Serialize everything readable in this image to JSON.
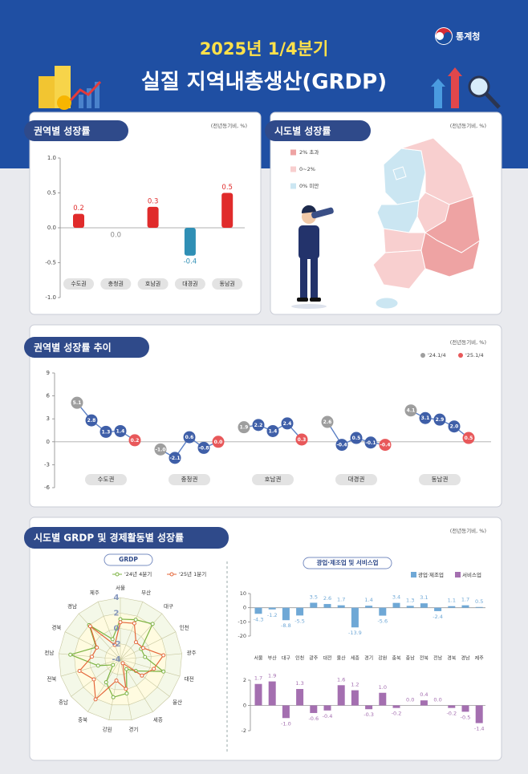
{
  "header": {
    "title_line1": "2025년 1/4분기",
    "title_line2": "실질 지역내총생산(GRDP)",
    "logo": "통계청"
  },
  "panel4": {
    "title": "시도별 GRDP 및 경제활동별 성장률",
    "unit": "(전년동기비, %)"
  },
  "chart_data": [
    {
      "type": "bar",
      "title": "권역별 성장률",
      "unit": "(전년동기비, %)",
      "categories": [
        "수도권",
        "충청권",
        "호남권",
        "대경권",
        "동남권"
      ],
      "values": [
        0.2,
        0.0,
        0.3,
        -0.4,
        0.5
      ],
      "value_labels": [
        "0.2",
        "0.0",
        "0.3",
        "-0.4",
        "0.5"
      ],
      "colors": [
        "#e02b2b",
        "#8a8a8a",
        "#e02b2b",
        "#2f8fb5",
        "#e02b2b"
      ],
      "ylim": [
        -1,
        1
      ],
      "yticks": [
        {
          "value": -1,
          "label": "-1.0"
        },
        {
          "value": -0.5,
          "label": "-0.5"
        },
        {
          "value": 0,
          "label": "0.0"
        },
        {
          "value": 0.5,
          "label": "0.5"
        },
        {
          "value": 1,
          "label": "1.0"
        }
      ]
    },
    {
      "type": "map",
      "title": "시도별 성장률",
      "unit": "(전년동기비, %)",
      "legend": [
        {
          "label": "2% 초과",
          "color": "#eea3a3"
        },
        {
          "label": "0~2%",
          "color": "#f8cfcf"
        },
        {
          "label": "0% 미만",
          "color": "#cbe6f2"
        }
      ]
    },
    {
      "type": "line",
      "title": "권역별 성장률 추이",
      "unit": "(전년동기비, %)",
      "legend": [
        {
          "label": "'24.1/4",
          "color": "#9e9e9e"
        },
        {
          "label": "'25.1/4",
          "color": "#e8585a"
        }
      ],
      "point_color": "#3f5fa8",
      "line_color": "#5b7fc4",
      "series": [
        {
          "name": "수도권",
          "values": [
            5.1,
            2.8,
            1.3,
            1.4,
            0.2
          ],
          "value_labels": [
            "5.1",
            "2.8",
            "1.3",
            "1.4",
            "0.2"
          ]
        },
        {
          "name": "충청권",
          "values": [
            -1.0,
            -2.1,
            0.6,
            -0.8,
            0.0
          ],
          "value_labels": [
            "-1.0",
            "-2.1",
            "0.6",
            "-0.8",
            "0.0"
          ]
        },
        {
          "name": "호남권",
          "values": [
            1.9,
            2.2,
            1.4,
            2.4,
            0.3
          ],
          "value_labels": [
            "1.9",
            "2.2",
            "1.4",
            "2.4",
            "0.3"
          ]
        },
        {
          "name": "대경권",
          "values": [
            2.6,
            -0.4,
            0.5,
            -0.1,
            -0.4
          ],
          "value_labels": [
            "2.6",
            "-0.4",
            "0.5",
            "-0.1",
            "-0.4"
          ]
        },
        {
          "name": "동남권",
          "values": [
            4.1,
            3.1,
            2.9,
            2.0,
            0.5
          ],
          "value_labels": [
            "4.1",
            "3.1",
            "2.9",
            "2.0",
            "0.5"
          ]
        }
      ],
      "ylim": [
        -6,
        9
      ],
      "yticks": [
        -6,
        -3,
        0,
        3,
        6,
        9
      ]
    },
    {
      "type": "radar",
      "title": "GRDP",
      "categories": [
        "서울",
        "부산",
        "대구",
        "인천",
        "광주",
        "대전",
        "울산",
        "세종",
        "경기",
        "강원",
        "충북",
        "충남",
        "전북",
        "전남",
        "경북",
        "경남",
        "제주"
      ],
      "series": [
        {
          "name": "'24년 4분기",
          "color": "#7cb342",
          "values": [
            1.2,
            1.5,
            2.2,
            -1.0,
            -0.8,
            1.8,
            -1.5,
            -2.5,
            0.5,
            1.0,
            -0.5,
            -2.8,
            -1.0,
            2.5,
            -0.5,
            2.0,
            -1.2
          ]
        },
        {
          "name": "'25년 1분기",
          "color": "#e4673a",
          "values": [
            0.8,
            1.0,
            -1.0,
            -0.7,
            1.6,
            0.5,
            -0.5,
            -3.4,
            -0.1,
            -1.2,
            2.1,
            0.3,
            1.5,
            -0.3,
            -0.6,
            1.8,
            -2.0
          ]
        }
      ],
      "rlim": [
        -4,
        4
      ],
      "rticks": [
        -4,
        -2,
        0,
        2,
        4
      ]
    },
    {
      "type": "bar",
      "title": "광업·제조업 및 서비스업",
      "categories": [
        "서울",
        "부산",
        "대구",
        "인천",
        "광주",
        "대전",
        "울산",
        "세종",
        "경기",
        "강원",
        "충북",
        "충남",
        "전북",
        "전남",
        "경북",
        "경남",
        "제주"
      ],
      "series": [
        {
          "name": "광업·제조업",
          "color": "#6fa8d6",
          "values": [
            -4.3,
            -1.2,
            -8.8,
            -5.5,
            3.5,
            2.6,
            1.7,
            -13.9,
            1.4,
            -5.6,
            3.4,
            1.3,
            3.1,
            -2.4,
            1.1,
            1.7,
            0.5
          ]
        }
      ],
      "ylim": [
        -20,
        10
      ],
      "yticks": [
        -20,
        -10,
        0,
        10
      ]
    },
    {
      "type": "bar",
      "series": [
        {
          "name": "서비스업",
          "color": "#a46fb0",
          "values": [
            1.7,
            1.9,
            -1.0,
            1.3,
            -0.6,
            -0.4,
            1.6,
            1.2,
            -0.3,
            1.0,
            -0.2,
            0.0,
            0.4,
            0.0,
            -0.2,
            -0.5,
            -1.4
          ],
          "value_labels": [
            "1.7",
            "1.9",
            "-1.0",
            "1.3",
            "-0.6",
            "-0.4",
            "1.6",
            "1.2",
            "-0.3",
            "1.0",
            "-0.2",
            "0.0",
            "0.4",
            "0.0",
            "-0.2",
            "-0.5",
            "-1.4"
          ]
        }
      ],
      "ylim": [
        -2,
        2
      ],
      "yticks": [
        -2,
        0,
        2
      ]
    }
  ]
}
